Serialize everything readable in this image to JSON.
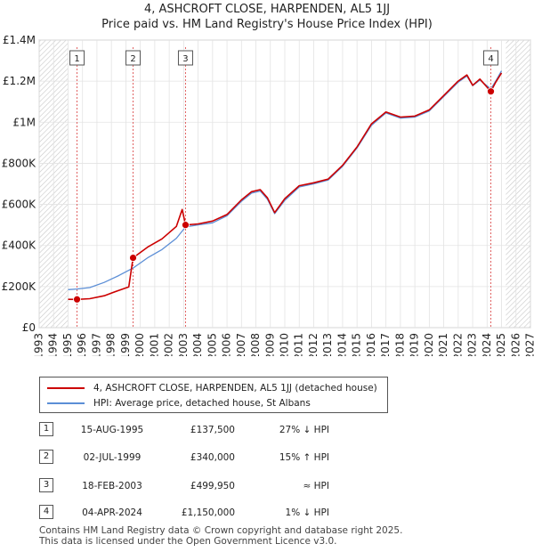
{
  "chart_data": {
    "type": "line",
    "title": "4, ASHCROFT CLOSE, HARPENDEN, AL5 1JJ",
    "subtitle": "Price paid vs. HM Land Registry's House Price Index (HPI)",
    "xlim": [
      1993,
      2027
    ],
    "ylim": [
      0,
      1400000
    ],
    "x_ticks": [
      1993,
      1994,
      1995,
      1996,
      1997,
      1998,
      1999,
      2000,
      2001,
      2002,
      2003,
      2004,
      2005,
      2006,
      2007,
      2008,
      2009,
      2010,
      2011,
      2012,
      2013,
      2014,
      2015,
      2016,
      2017,
      2018,
      2019,
      2020,
      2021,
      2022,
      2023,
      2024,
      2025,
      2026,
      2027
    ],
    "y_ticks": [
      {
        "value": 0,
        "label": "£0"
      },
      {
        "value": 200000,
        "label": "£200K"
      },
      {
        "value": 400000,
        "label": "£400K"
      },
      {
        "value": 600000,
        "label": "£600K"
      },
      {
        "value": 800000,
        "label": "£800K"
      },
      {
        "value": 1000000,
        "label": "£1M"
      },
      {
        "value": 1200000,
        "label": "£1.2M"
      },
      {
        "value": 1400000,
        "label": "£1.4M"
      }
    ],
    "data_start": 1995.0,
    "data_end": 2025.3,
    "series": [
      {
        "name": "4, ASHCROFT CLOSE, HARPENDEN, AL5 1JJ (detached house)",
        "color": "#cc0000",
        "points": [
          [
            1995.0,
            138000
          ],
          [
            1995.62,
            137500
          ],
          [
            1996.5,
            141000
          ],
          [
            1997.5,
            155000
          ],
          [
            1998.5,
            181000
          ],
          [
            1999.2,
            198000
          ],
          [
            1999.5,
            340000
          ],
          [
            2000.5,
            392000
          ],
          [
            2001.5,
            432000
          ],
          [
            2002.5,
            493000
          ],
          [
            2002.9,
            575000
          ],
          [
            2003.13,
            499950
          ],
          [
            2004.0,
            505000
          ],
          [
            2005.0,
            519000
          ],
          [
            2006.0,
            551000
          ],
          [
            2007.0,
            622000
          ],
          [
            2007.7,
            662000
          ],
          [
            2008.3,
            672000
          ],
          [
            2008.8,
            632000
          ],
          [
            2009.3,
            560000
          ],
          [
            2010.0,
            628000
          ],
          [
            2011.0,
            691000
          ],
          [
            2012.0,
            705000
          ],
          [
            2013.0,
            723000
          ],
          [
            2014.0,
            790000
          ],
          [
            2015.0,
            880000
          ],
          [
            2016.0,
            992000
          ],
          [
            2017.0,
            1050000
          ],
          [
            2018.0,
            1025000
          ],
          [
            2019.0,
            1030000
          ],
          [
            2020.0,
            1060000
          ],
          [
            2021.0,
            1130000
          ],
          [
            2022.0,
            1200000
          ],
          [
            2022.6,
            1230000
          ],
          [
            2023.0,
            1180000
          ],
          [
            2023.5,
            1210000
          ],
          [
            2024.26,
            1150000
          ],
          [
            2024.6,
            1195000
          ],
          [
            2025.0,
            1240000
          ]
        ]
      },
      {
        "name": "HPI: Average price, detached house, St Albans",
        "color": "#5b8ed6",
        "points": [
          [
            1995.0,
            185000
          ],
          [
            1995.62,
            188000
          ],
          [
            1996.5,
            195000
          ],
          [
            1997.5,
            220000
          ],
          [
            1998.5,
            253000
          ],
          [
            1999.5,
            290000
          ],
          [
            2000.5,
            340000
          ],
          [
            2001.5,
            380000
          ],
          [
            2002.5,
            435000
          ],
          [
            2003.13,
            490000
          ],
          [
            2004.0,
            500000
          ],
          [
            2005.0,
            510000
          ],
          [
            2006.0,
            545000
          ],
          [
            2007.0,
            615000
          ],
          [
            2007.7,
            655000
          ],
          [
            2008.3,
            665000
          ],
          [
            2008.8,
            625000
          ],
          [
            2009.3,
            555000
          ],
          [
            2010.0,
            620000
          ],
          [
            2011.0,
            685000
          ],
          [
            2012.0,
            700000
          ],
          [
            2013.0,
            718000
          ],
          [
            2014.0,
            785000
          ],
          [
            2015.0,
            875000
          ],
          [
            2016.0,
            985000
          ],
          [
            2017.0,
            1045000
          ],
          [
            2018.0,
            1020000
          ],
          [
            2019.0,
            1025000
          ],
          [
            2020.0,
            1055000
          ],
          [
            2021.0,
            1125000
          ],
          [
            2022.0,
            1195000
          ],
          [
            2022.6,
            1225000
          ],
          [
            2023.0,
            1178000
          ],
          [
            2023.5,
            1205000
          ],
          [
            2024.26,
            1162000
          ],
          [
            2024.6,
            1200000
          ],
          [
            2025.0,
            1250000
          ]
        ]
      }
    ],
    "sales": [
      {
        "num": "1",
        "x": 1995.62,
        "price": 137500,
        "date": "15-AUG-1995",
        "price_label": "£137,500",
        "hpi_label": "27% ↓ HPI"
      },
      {
        "num": "2",
        "x": 1999.5,
        "price": 340000,
        "date": "02-JUL-1999",
        "price_label": "£340,000",
        "hpi_label": "15% ↑ HPI"
      },
      {
        "num": "3",
        "x": 2003.13,
        "price": 499950,
        "date": "18-FEB-2003",
        "price_label": "£499,950",
        "hpi_label": "≈ HPI"
      },
      {
        "num": "4",
        "x": 2024.26,
        "price": 1150000,
        "date": "04-APR-2024",
        "price_label": "£1,150,000",
        "hpi_label": "1% ↓ HPI"
      }
    ]
  },
  "legend": {
    "property_label": "4, ASHCROFT CLOSE, HARPENDEN, AL5 1JJ (detached house)",
    "hpi_label": "HPI: Average price, detached house, St Albans"
  },
  "footer": {
    "line1": "Contains HM Land Registry data © Crown copyright and database right 2025.",
    "line2": "This data is licensed under the Open Government Licence v3.0."
  }
}
